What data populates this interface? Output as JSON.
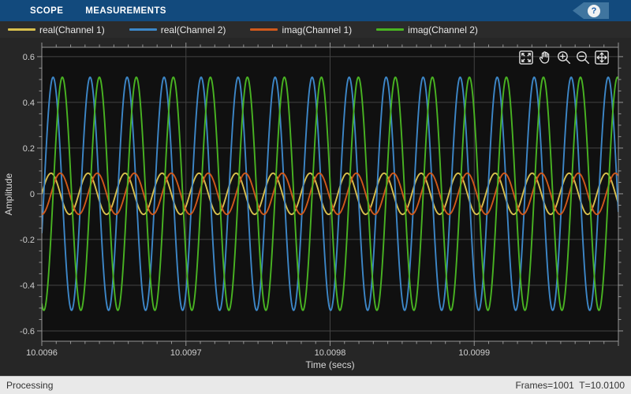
{
  "toolbar": {
    "tabs": [
      {
        "label": "SCOPE"
      },
      {
        "label": "MEASUREMENTS"
      }
    ],
    "help_label": "?"
  },
  "legend": {
    "items": [
      {
        "label": "real(Channel 1)",
        "color": "#d8c04e"
      },
      {
        "label": "real(Channel 2)",
        "color": "#3d87c8"
      },
      {
        "label": "imag(Channel 1)",
        "color": "#d0591c"
      },
      {
        "label": "imag(Channel 2)",
        "color": "#49b422"
      }
    ]
  },
  "plot_toolbar": {
    "icons": [
      "maximize-view",
      "pan",
      "zoom-in",
      "zoom-out",
      "fit-to-view"
    ]
  },
  "chart_data": {
    "type": "line",
    "title": "",
    "xlabel": "Time (secs)",
    "ylabel": "Amplitude",
    "xlim": [
      10.0096,
      10.01
    ],
    "ylim": [
      -0.645,
      0.641
    ],
    "x_major_ticks": [
      10.0096,
      10.0097,
      10.0098,
      10.0099
    ],
    "x_tick_labels": [
      "10.0096",
      "10.0097",
      "10.0098",
      "10.0099"
    ],
    "x_minor_divisions_per_major": 10,
    "y_major_ticks": [
      -0.6,
      -0.4,
      -0.2,
      0,
      0.2,
      0.4,
      0.6
    ],
    "y_tick_labels": [
      "-0.6",
      "-0.4",
      "-0.2",
      "0",
      "0.2",
      "0.4",
      "0.6"
    ],
    "y_minor_step": 0.05,
    "grid": true,
    "background": "#101010",
    "grid_color": "#434343",
    "axis_color": "#969696",
    "tick_label_color": "#cfcfcf",
    "axis_label_color": "#d8d8d8",
    "legend_position": "top",
    "series": [
      {
        "name": "real(Channel 1)",
        "color": "#d8c04e",
        "waveform": "sine",
        "amplitude": 0.09,
        "cycles_in_window": 15.58,
        "first_peak_fraction_of_cycle": 0.25
      },
      {
        "name": "real(Channel 2)",
        "color": "#3d87c8",
        "waveform": "sine",
        "amplitude": 0.51,
        "cycles_in_window": 15.58,
        "first_peak_fraction_of_cycle": 0.305
      },
      {
        "name": "imag(Channel 1)",
        "color": "#d0591c",
        "waveform": "sine",
        "amplitude": 0.09,
        "cycles_in_window": 15.58,
        "first_peak_fraction_of_cycle": 0.5
      },
      {
        "name": "imag(Channel 2)",
        "color": "#49b422",
        "waveform": "sine",
        "amplitude": 0.51,
        "cycles_in_window": 15.58,
        "first_peak_fraction_of_cycle": 0.555
      }
    ]
  },
  "status_bar": {
    "left": "Processing",
    "right": "Frames=1001  T=10.0100"
  }
}
